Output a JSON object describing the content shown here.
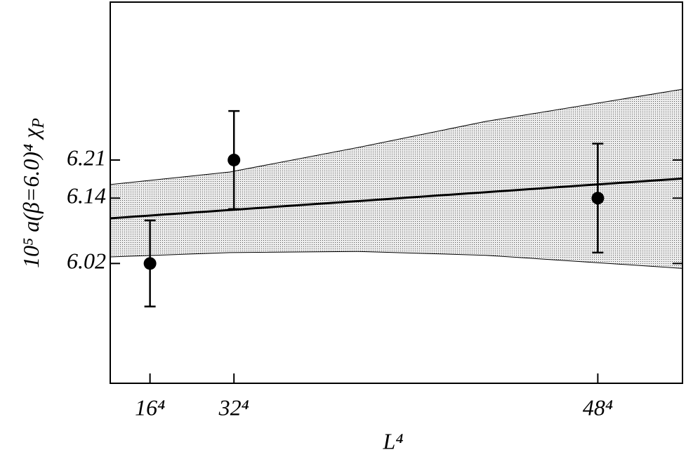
{
  "chart_data": {
    "type": "errorbar",
    "xlabel": "L⁴",
    "ylabel": {
      "text": "10⁵ a(β=6.0)⁴ χ",
      "subscript": "P"
    },
    "xlim": [
      -400000,
      6300000
    ],
    "ylim": [
      5.8,
      6.5
    ],
    "xticks": [
      {
        "value": 65536,
        "label": "16⁴"
      },
      {
        "value": 1048576,
        "label": "32⁴"
      },
      {
        "value": 5308416,
        "label": "48⁴"
      }
    ],
    "yticks": [
      6.02,
      6.14,
      6.21
    ],
    "points": {
      "x": [
        65536,
        1048576,
        5308416
      ],
      "values": [
        6.02,
        6.21,
        6.14
      ],
      "errors": [
        0.079,
        0.09,
        0.1
      ],
      "color": "#000000"
    },
    "fit": {
      "x": [
        -400000,
        6300000
      ],
      "values": [
        6.103,
        6.176
      ],
      "color": "#000000"
    },
    "band": {
      "x": [
        -400000,
        1000000,
        2500000,
        4000000,
        6300000
      ],
      "upper": [
        6.165,
        6.188,
        6.233,
        6.281,
        6.34
      ],
      "lower": [
        6.032,
        6.04,
        6.042,
        6.035,
        6.011
      ],
      "color": "#d4d4d4"
    }
  }
}
